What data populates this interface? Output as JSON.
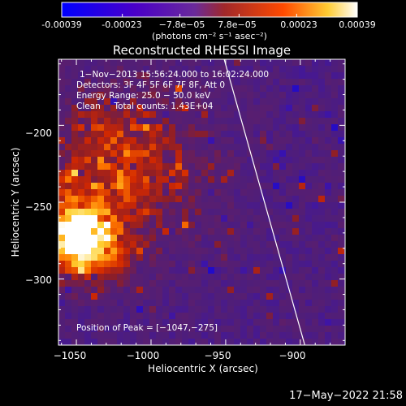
{
  "colorbar": {
    "ticks": [
      "-0.00039",
      "-0.00023",
      "−7.8e−05",
      "7.8e−05",
      "0.00023",
      "0.00039"
    ],
    "label": "(photons cm⁻² s⁻¹ asec⁻²)",
    "colors": [
      "#0000ff",
      "#4a00c8",
      "#6a2a9a",
      "#a0282a",
      "#ff4a00",
      "#ffcc33",
      "#ffffff"
    ]
  },
  "chart_data": {
    "type": "heatmap",
    "title": "Reconstructed RHESSI Image",
    "xlabel": "Heliocentric X (arcsec)",
    "ylabel": "Heliocentric Y (arcsec)",
    "xlim": [
      -1062,
      -870
    ],
    "ylim": [
      -343,
      -157
    ],
    "xticks": [
      -1050,
      -1000,
      -950,
      -900
    ],
    "xtick_labels": [
      "−1050",
      "−1000",
      "−950",
      "−900"
    ],
    "yticks": [
      -200,
      -250,
      -300
    ],
    "ytick_labels": [
      "−200",
      "−250",
      "−300"
    ],
    "colorbar_range": [
      -0.00039,
      0.00039
    ],
    "limb_line": [
      [
        -951,
        -157
      ],
      [
        -897,
        -343
      ]
    ],
    "peak": [
      -1047,
      -275
    ],
    "info": [
      "1−Nov−2013 15:56:24.000 to 16:02:24.000",
      "Detectors: 3F 4F 5F 6F 7F 8F, Att 0",
      "Energy Range: 25.0 − 50.0 keV",
      "Clean     Total counts: 1.43E+04"
    ],
    "peak_text": "Position of Peak = [−1047,−275]"
  },
  "footer": {
    "date": "17−May−2022 21:58"
  }
}
